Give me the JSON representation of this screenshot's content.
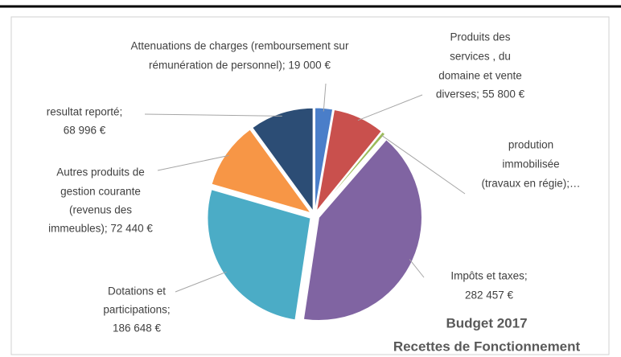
{
  "chart_data": {
    "type": "pie",
    "title": "Budget 2017",
    "subtitle": "Recettes de Fonctionnement",
    "values": [
      19000,
      55800,
      3500,
      282457,
      186648,
      72440,
      68996
    ],
    "value_labels": [
      [
        "Attenuations de charges (remboursement sur",
        "rémunération de personnel); 19 000 €"
      ],
      [
        "Produits des",
        "services , du",
        "domaine et vente",
        "diverses; 55 800 €"
      ],
      [
        "prodution",
        "immobilisée",
        "(travaux en régie);…"
      ],
      [
        "Impôts et taxes;",
        "282 457 €"
      ],
      [
        "Dotations et",
        "participations;",
        "186 648 €"
      ],
      [
        "Autres produits de",
        "gestion courante",
        "(revenus des",
        "immeubles); 72 440 €"
      ],
      [
        "resultat reporté;",
        "68 996 €"
      ]
    ],
    "colors": [
      "#4a7ec9",
      "#c9504d",
      "#9bbb59",
      "#8064a2",
      "#4bacc6",
      "#f79646",
      "#2c4d75"
    ]
  }
}
